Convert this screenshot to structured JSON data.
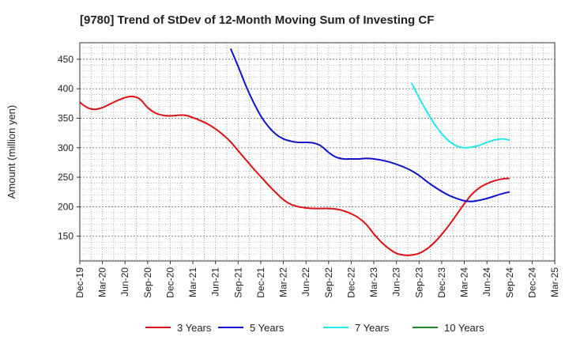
{
  "chart_data": {
    "type": "line",
    "title": "[9780]  Trend of StDev of 12-Month Moving Sum of Investing CF",
    "ylabel": "Amount (million yen)",
    "xlabel": "",
    "ylim": [
      108,
      478
    ],
    "yticks": [
      150,
      200,
      250,
      300,
      350,
      400,
      450
    ],
    "x_ticks": [
      "Dec-19",
      "Mar-20",
      "Jun-20",
      "Sep-20",
      "Dec-20",
      "Mar-21",
      "Jun-21",
      "Sep-21",
      "Dec-21",
      "Mar-22",
      "Jun-22",
      "Sep-22",
      "Dec-22",
      "Mar-23",
      "Jun-23",
      "Sep-23",
      "Dec-23",
      "Mar-24",
      "Jun-24",
      "Sep-24",
      "Dec-24",
      "Mar-25"
    ],
    "grid": true,
    "legend_position": "bottom",
    "series": [
      {
        "name": "3 Years",
        "color": "#dd1111",
        "points": [
          [
            "Dec-19",
            377
          ],
          [
            "Jan-20",
            368
          ],
          [
            "Feb-20",
            365
          ],
          [
            "Mar-20",
            368
          ],
          [
            "Apr-20",
            374
          ],
          [
            "May-20",
            380
          ],
          [
            "Jun-20",
            385
          ],
          [
            "Jul-20",
            387
          ],
          [
            "Aug-20",
            382
          ],
          [
            "Sep-20",
            368
          ],
          [
            "Oct-20",
            359
          ],
          [
            "Nov-20",
            355
          ],
          [
            "Dec-20",
            354
          ],
          [
            "Jan-21",
            355
          ],
          [
            "Feb-21",
            355
          ],
          [
            "Mar-21",
            351
          ],
          [
            "Apr-21",
            346
          ],
          [
            "May-21",
            340
          ],
          [
            "Jun-21",
            332
          ],
          [
            "Jul-21",
            322
          ],
          [
            "Aug-21",
            310
          ],
          [
            "Sep-21",
            295
          ],
          [
            "Oct-21",
            280
          ],
          [
            "Nov-21",
            265
          ],
          [
            "Dec-21",
            251
          ],
          [
            "Jan-22",
            237
          ],
          [
            "Feb-22",
            224
          ],
          [
            "Mar-22",
            212
          ],
          [
            "Apr-22",
            204
          ],
          [
            "May-22",
            200
          ],
          [
            "Jun-22",
            198
          ],
          [
            "Jul-22",
            197
          ],
          [
            "Aug-22",
            197
          ],
          [
            "Sep-22",
            197
          ],
          [
            "Oct-22",
            196
          ],
          [
            "Nov-22",
            193
          ],
          [
            "Dec-22",
            188
          ],
          [
            "Jan-23",
            181
          ],
          [
            "Feb-23",
            170
          ],
          [
            "Mar-23",
            154
          ],
          [
            "Apr-23",
            140
          ],
          [
            "May-23",
            129
          ],
          [
            "Jun-23",
            121
          ],
          [
            "Jul-23",
            118
          ],
          [
            "Aug-23",
            118
          ],
          [
            "Sep-23",
            121
          ],
          [
            "Oct-23",
            128
          ],
          [
            "Nov-23",
            139
          ],
          [
            "Dec-23",
            153
          ],
          [
            "Jan-24",
            169
          ],
          [
            "Feb-24",
            187
          ],
          [
            "Mar-24",
            205
          ],
          [
            "Apr-24",
            221
          ],
          [
            "May-24",
            232
          ],
          [
            "Jun-24",
            239
          ],
          [
            "Jul-24",
            244
          ],
          [
            "Aug-24",
            247
          ],
          [
            "Sep-24",
            248
          ]
        ]
      },
      {
        "name": "5 Years",
        "color": "#1111cc",
        "points": [
          [
            "Aug-21",
            468
          ],
          [
            "Sep-21",
            438
          ],
          [
            "Oct-21",
            406
          ],
          [
            "Nov-21",
            378
          ],
          [
            "Dec-21",
            354
          ],
          [
            "Jan-22",
            336
          ],
          [
            "Feb-22",
            323
          ],
          [
            "Mar-22",
            315
          ],
          [
            "Apr-22",
            311
          ],
          [
            "May-22",
            309
          ],
          [
            "Jun-22",
            309
          ],
          [
            "Jul-22",
            308
          ],
          [
            "Aug-22",
            303
          ],
          [
            "Sep-22",
            292
          ],
          [
            "Oct-22",
            284
          ],
          [
            "Nov-22",
            281
          ],
          [
            "Dec-22",
            281
          ],
          [
            "Jan-23",
            281
          ],
          [
            "Feb-23",
            282
          ],
          [
            "Mar-23",
            281
          ],
          [
            "Apr-23",
            279
          ],
          [
            "May-23",
            276
          ],
          [
            "Jun-23",
            272
          ],
          [
            "Jul-23",
            267
          ],
          [
            "Aug-23",
            261
          ],
          [
            "Sep-23",
            253
          ],
          [
            "Oct-23",
            243
          ],
          [
            "Nov-23",
            234
          ],
          [
            "Dec-23",
            226
          ],
          [
            "Jan-24",
            219
          ],
          [
            "Feb-24",
            214
          ],
          [
            "Mar-24",
            210
          ],
          [
            "Apr-24",
            209
          ],
          [
            "May-24",
            211
          ],
          [
            "Jun-24",
            214
          ],
          [
            "Jul-24",
            218
          ],
          [
            "Aug-24",
            222
          ],
          [
            "Sep-24",
            225
          ]
        ]
      },
      {
        "name": "7 Years",
        "color": "#22e8ee",
        "points": [
          [
            "Aug-23",
            410
          ],
          [
            "Sep-23",
            385
          ],
          [
            "Oct-23",
            362
          ],
          [
            "Nov-23",
            341
          ],
          [
            "Dec-23",
            324
          ],
          [
            "Jan-24",
            311
          ],
          [
            "Feb-24",
            303
          ],
          [
            "Mar-24",
            300
          ],
          [
            "Apr-24",
            301
          ],
          [
            "May-24",
            304
          ],
          [
            "Jun-24",
            309
          ],
          [
            "Jul-24",
            313
          ],
          [
            "Aug-24",
            315
          ],
          [
            "Sep-24",
            313
          ]
        ]
      },
      {
        "name": "10 Years",
        "color": "#228b22",
        "points": []
      }
    ]
  }
}
